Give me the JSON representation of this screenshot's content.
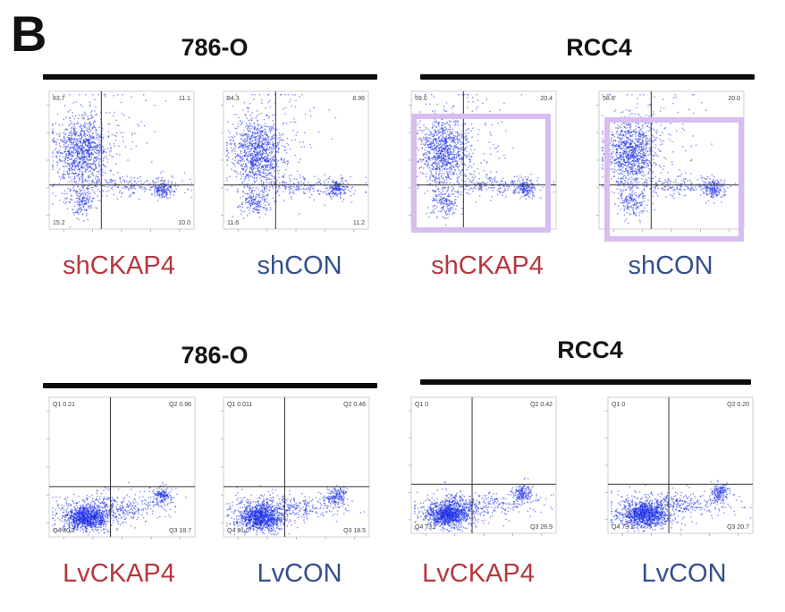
{
  "panel_letter": "B",
  "colors": {
    "dot": "#1a2ee8",
    "knockdown_label": "#b5383f",
    "control_label": "#35508f",
    "highlight": "#d8bdf0"
  },
  "rows": [
    {
      "groups": [
        {
          "label": "786-O",
          "plots": [
            {
              "label": "shCKAP4",
              "q": [
                "83.7",
                "11.1",
                "15.2",
                "10.0"
              ]
            },
            {
              "label": "shCON",
              "q": [
                "84.3",
                "8.96",
                "11.6",
                "11.2"
              ]
            }
          ]
        },
        {
          "label": "RCC4",
          "plots": [
            {
              "label": "shCKAP4",
              "q": [
                "59.0",
                "20.4",
                "",
                ""
              ]
            },
            {
              "label": "shCON",
              "q": [
                "58.6",
                "20.0",
                "",
                ""
              ]
            }
          ]
        }
      ]
    },
    {
      "groups": [
        {
          "label": "786-O",
          "plots": [
            {
              "label": "LvCKAP4",
              "q": [
                "Q1 0.21",
                "Q2 0.96",
                "Q4 80.1",
                "Q3 18.7"
              ]
            },
            {
              "label": "LvCON",
              "q": [
                "Q1 0.011",
                "Q2 0.46",
                "Q4 81.0",
                "Q3 18.5"
              ]
            }
          ]
        },
        {
          "label": "RCC4",
          "plots": [
            {
              "label": "LvCKAP4",
              "q": [
                "Q1 0",
                "Q2 0.42",
                "Q4 73.7",
                "Q3 26.9"
              ]
            },
            {
              "label": "LvCON",
              "q": [
                "Q1 0",
                "Q2 0.20",
                "Q4 79.1",
                "Q3 20.7"
              ]
            }
          ]
        }
      ]
    }
  ]
}
